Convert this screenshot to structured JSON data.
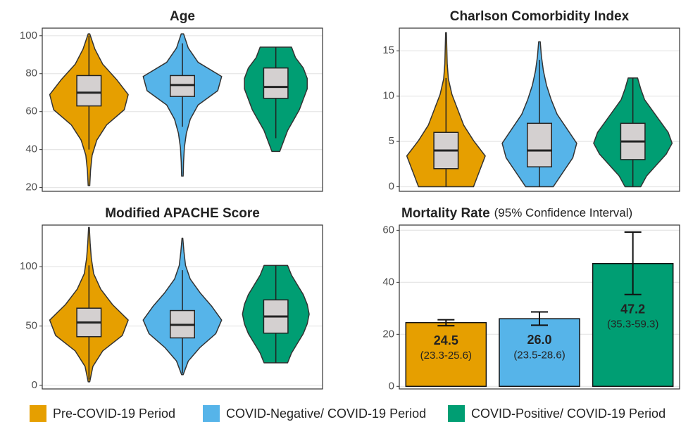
{
  "chart_data": [
    {
      "type": "violin",
      "title": "Age",
      "ylim": [
        18,
        104
      ],
      "yticks": [
        20,
        40,
        60,
        80,
        100
      ],
      "grid": true,
      "groups": [
        {
          "range": [
            21,
            101
          ],
          "whiskers": [
            40,
            100
          ],
          "box": [
            63,
            70,
            79
          ],
          "density": [
            0.02,
            0.04,
            0.08,
            0.2,
            0.45,
            0.9,
            1.0,
            0.7,
            0.35,
            0.15,
            0.02
          ]
        },
        {
          "range": [
            26,
            101
          ],
          "whiskers": [
            52,
            96
          ],
          "box": [
            68,
            74,
            79
          ],
          "density": [
            0.02,
            0.03,
            0.05,
            0.1,
            0.2,
            0.4,
            0.9,
            1.0,
            0.4,
            0.15,
            0.03
          ]
        },
        {
          "range": [
            39,
            94
          ],
          "whiskers": [
            46,
            94
          ],
          "box": [
            67,
            73,
            83
          ],
          "density": [
            0.1,
            0.2,
            0.3,
            0.45,
            0.6,
            0.7,
            0.8,
            0.8,
            0.7,
            0.5,
            0.4
          ]
        }
      ]
    },
    {
      "type": "violin",
      "title": "Charlson Comorbidity Index",
      "ylim": [
        -0.5,
        17.5
      ],
      "yticks": [
        0,
        5,
        10,
        15
      ],
      "grid": true,
      "groups": [
        {
          "range": [
            0,
            17
          ],
          "whiskers": [
            0,
            12
          ],
          "box": [
            2,
            4,
            6
          ],
          "density": [
            0.7,
            0.85,
            1.0,
            0.7,
            0.45,
            0.3,
            0.15,
            0.06,
            0.03,
            0.02,
            0.01
          ]
        },
        {
          "range": [
            0,
            16
          ],
          "whiskers": [
            0,
            14
          ],
          "box": [
            2.2,
            4,
            7
          ],
          "density": [
            0.35,
            0.6,
            0.85,
            0.95,
            0.7,
            0.45,
            0.3,
            0.18,
            0.1,
            0.05,
            0.02
          ]
        },
        {
          "range": [
            0,
            12
          ],
          "whiskers": [
            0,
            12
          ],
          "box": [
            3,
            5,
            7
          ],
          "density": [
            0.2,
            0.35,
            0.6,
            0.85,
            1.0,
            0.9,
            0.7,
            0.5,
            0.3,
            0.2,
            0.12
          ]
        }
      ]
    },
    {
      "type": "violin",
      "title": "Modified APACHE Score",
      "ylim": [
        -3,
        135
      ],
      "yticks": [
        0,
        50,
        100
      ],
      "grid": true,
      "groups": [
        {
          "range": [
            3,
            133
          ],
          "whiskers": [
            5,
            101
          ],
          "box": [
            41,
            53,
            65
          ],
          "density": [
            0.02,
            0.1,
            0.35,
            0.85,
            1.0,
            0.6,
            0.3,
            0.12,
            0.06,
            0.03,
            0.01
          ]
        },
        {
          "range": [
            9,
            124
          ],
          "whiskers": [
            10,
            97
          ],
          "box": [
            40,
            51,
            63
          ],
          "density": [
            0.02,
            0.15,
            0.45,
            0.85,
            1.0,
            0.75,
            0.45,
            0.2,
            0.08,
            0.04,
            0.01
          ]
        },
        {
          "range": [
            19,
            101
          ],
          "whiskers": [
            19,
            101
          ],
          "box": [
            44,
            58,
            72
          ],
          "density": [
            0.3,
            0.4,
            0.55,
            0.7,
            0.8,
            0.85,
            0.8,
            0.7,
            0.55,
            0.4,
            0.3
          ]
        }
      ]
    },
    {
      "type": "bar",
      "title": "Mortality Rate",
      "subtitle": "(95% Confidence Interval)",
      "ylim": [
        -1,
        62
      ],
      "yticks": [
        0,
        20,
        40,
        60
      ],
      "grid": true,
      "values": [
        24.5,
        26.0,
        47.2
      ],
      "value_labels": [
        "24.5",
        "26.0",
        "47.2"
      ],
      "ci_lower": [
        23.3,
        23.5,
        35.3
      ],
      "ci_upper": [
        25.6,
        28.6,
        59.3
      ],
      "ci_labels": [
        "(23.3-25.6)",
        "(23.5-28.6)",
        "(35.3-59.3)"
      ]
    }
  ],
  "legend": {
    "names": [
      "Pre-COVID-19 Period",
      "COVID-Negative/ COVID-19 Period",
      "COVID-Positive/ COVID-19 Period"
    ],
    "colors": [
      "#E69F00",
      "#56B4E9",
      "#009E73"
    ]
  }
}
